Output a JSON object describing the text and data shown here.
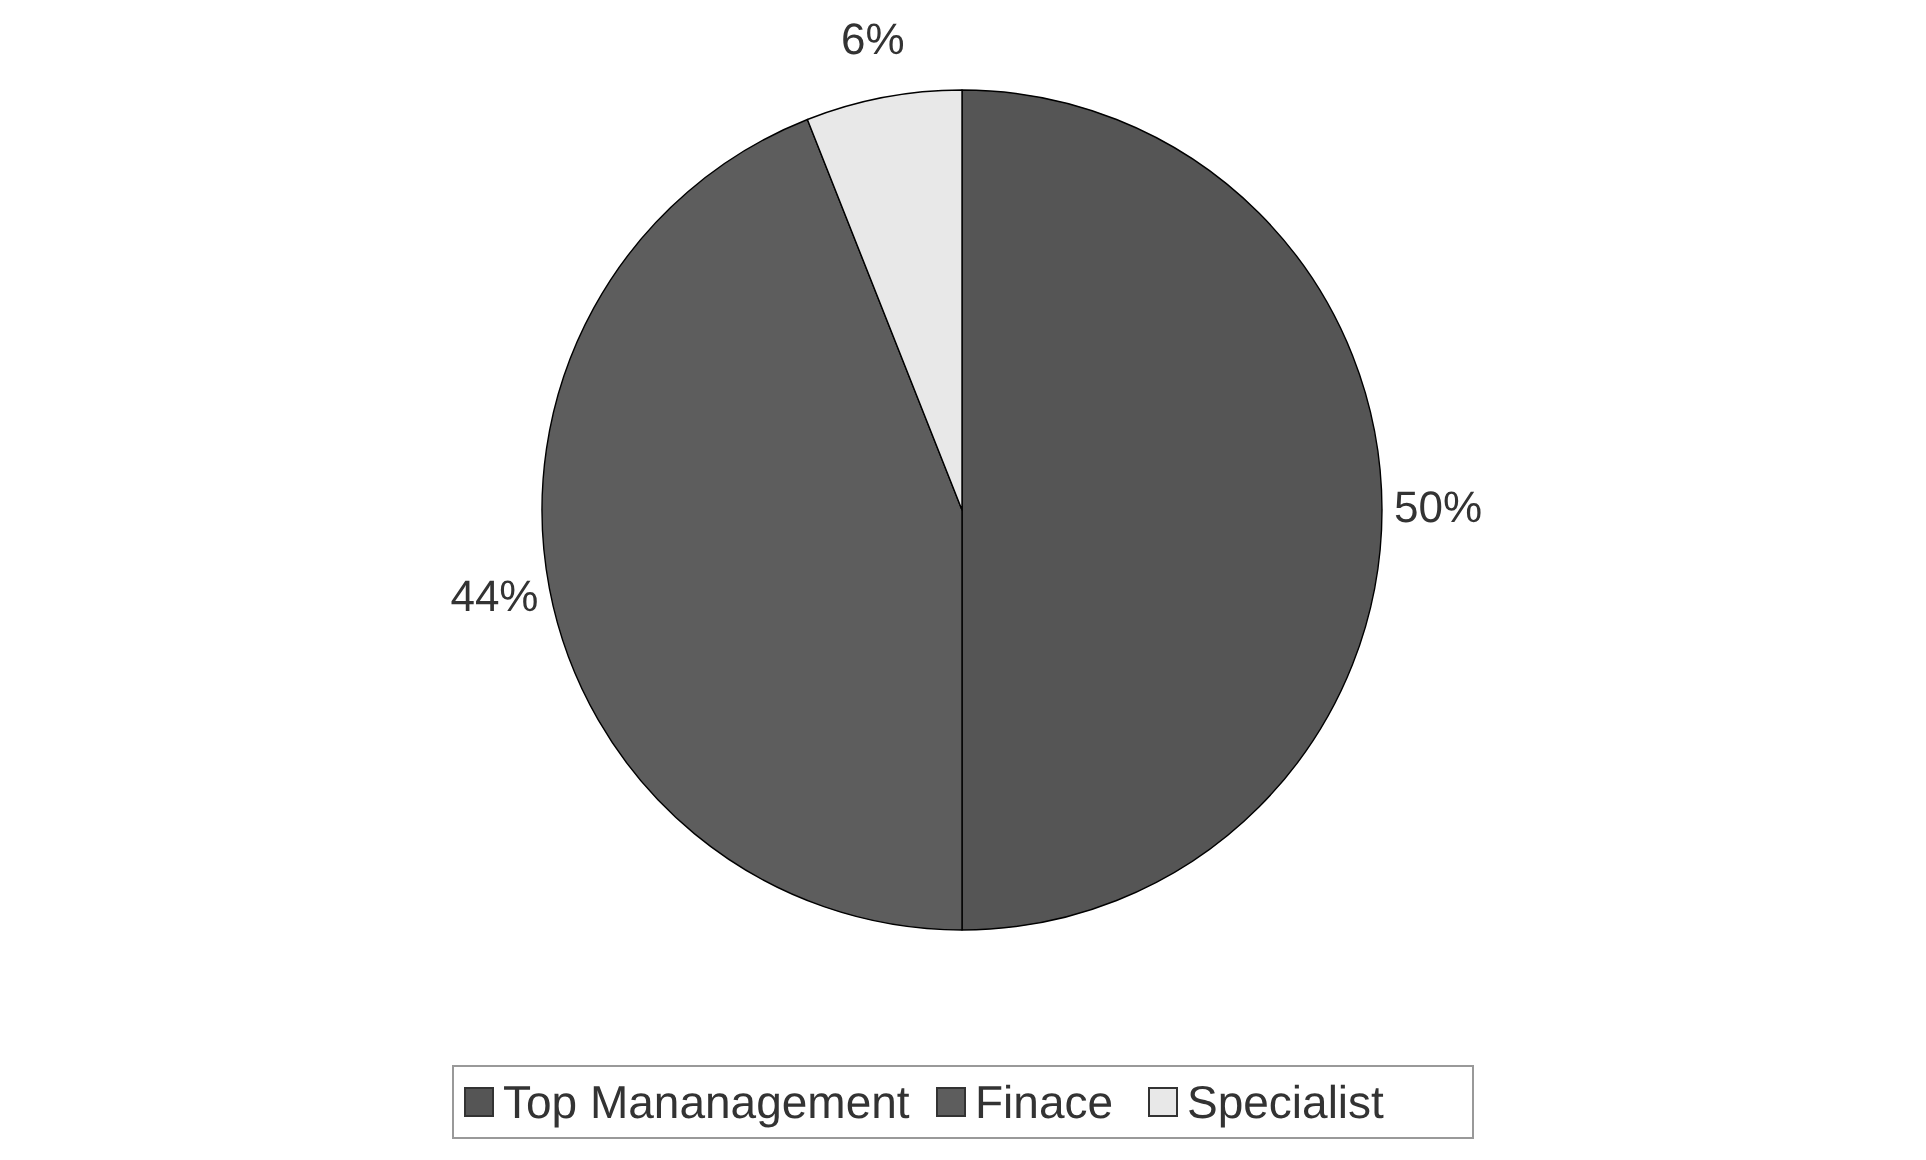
{
  "chart_data": {
    "type": "pie",
    "categories": [
      "Top Mananagement",
      "Finace",
      "Specialist"
    ],
    "values": [
      50,
      44,
      6
    ],
    "colors": [
      "#555555",
      "#5d5d5d",
      "#e8e8e8"
    ],
    "value_labels": [
      "50%",
      "44%",
      "6%"
    ],
    "legend": "bottom"
  }
}
